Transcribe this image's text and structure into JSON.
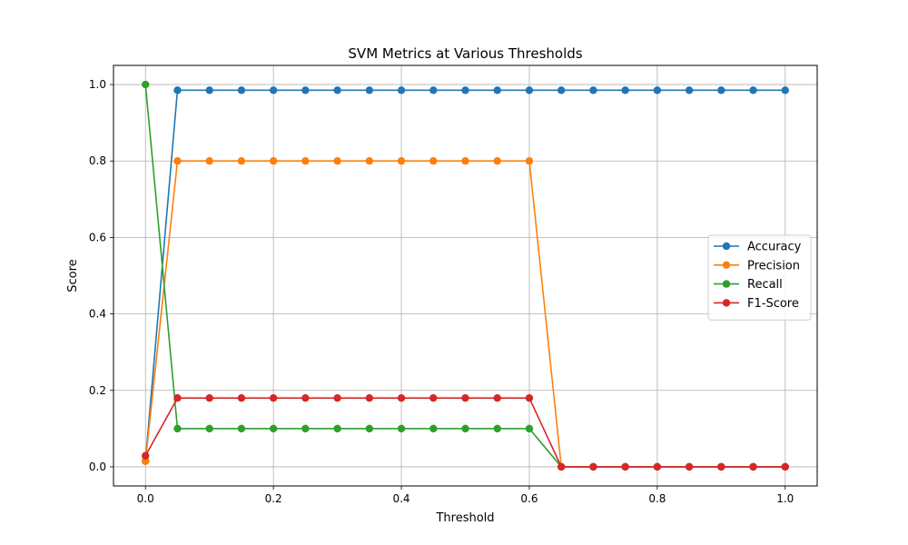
{
  "chart_data": {
    "type": "line",
    "title": "SVM Metrics at Various Thresholds",
    "xlabel": "Threshold",
    "ylabel": "Score",
    "xlim": [
      -0.05,
      1.05
    ],
    "ylim": [
      -0.05,
      1.05
    ],
    "xticks": [
      0.0,
      0.2,
      0.4,
      0.6,
      0.8,
      1.0
    ],
    "xtick_labels": [
      "0.0",
      "0.2",
      "0.4",
      "0.6",
      "0.8",
      "1.0"
    ],
    "yticks": [
      0.0,
      0.2,
      0.4,
      0.6,
      0.8,
      1.0
    ],
    "ytick_labels": [
      "0.0",
      "0.2",
      "0.4",
      "0.6",
      "0.8",
      "1.0"
    ],
    "grid": true,
    "legend_position": "center-right",
    "x": [
      0.0,
      0.05,
      0.1,
      0.15,
      0.2,
      0.25,
      0.3,
      0.35,
      0.4,
      0.45,
      0.5,
      0.55,
      0.6,
      0.65,
      0.7,
      0.75,
      0.8,
      0.85,
      0.9,
      0.95,
      1.0
    ],
    "series": [
      {
        "name": "Accuracy",
        "color": "#1f77b4",
        "values": [
          0.015,
          0.985,
          0.985,
          0.985,
          0.985,
          0.985,
          0.985,
          0.985,
          0.985,
          0.985,
          0.985,
          0.985,
          0.985,
          0.985,
          0.985,
          0.985,
          0.985,
          0.985,
          0.985,
          0.985,
          0.985
        ]
      },
      {
        "name": "Precision",
        "color": "#ff7f0e",
        "values": [
          0.015,
          0.8,
          0.8,
          0.8,
          0.8,
          0.8,
          0.8,
          0.8,
          0.8,
          0.8,
          0.8,
          0.8,
          0.8,
          0.0,
          0.0,
          0.0,
          0.0,
          0.0,
          0.0,
          0.0,
          0.0
        ]
      },
      {
        "name": "Recall",
        "color": "#2ca02c",
        "values": [
          1.0,
          0.1,
          0.1,
          0.1,
          0.1,
          0.1,
          0.1,
          0.1,
          0.1,
          0.1,
          0.1,
          0.1,
          0.1,
          0.0,
          0.0,
          0.0,
          0.0,
          0.0,
          0.0,
          0.0,
          0.0
        ]
      },
      {
        "name": "F1-Score",
        "color": "#d62728",
        "values": [
          0.029,
          0.18,
          0.18,
          0.18,
          0.18,
          0.18,
          0.18,
          0.18,
          0.18,
          0.18,
          0.18,
          0.18,
          0.18,
          0.0,
          0.0,
          0.0,
          0.0,
          0.0,
          0.0,
          0.0,
          0.0
        ]
      }
    ]
  }
}
